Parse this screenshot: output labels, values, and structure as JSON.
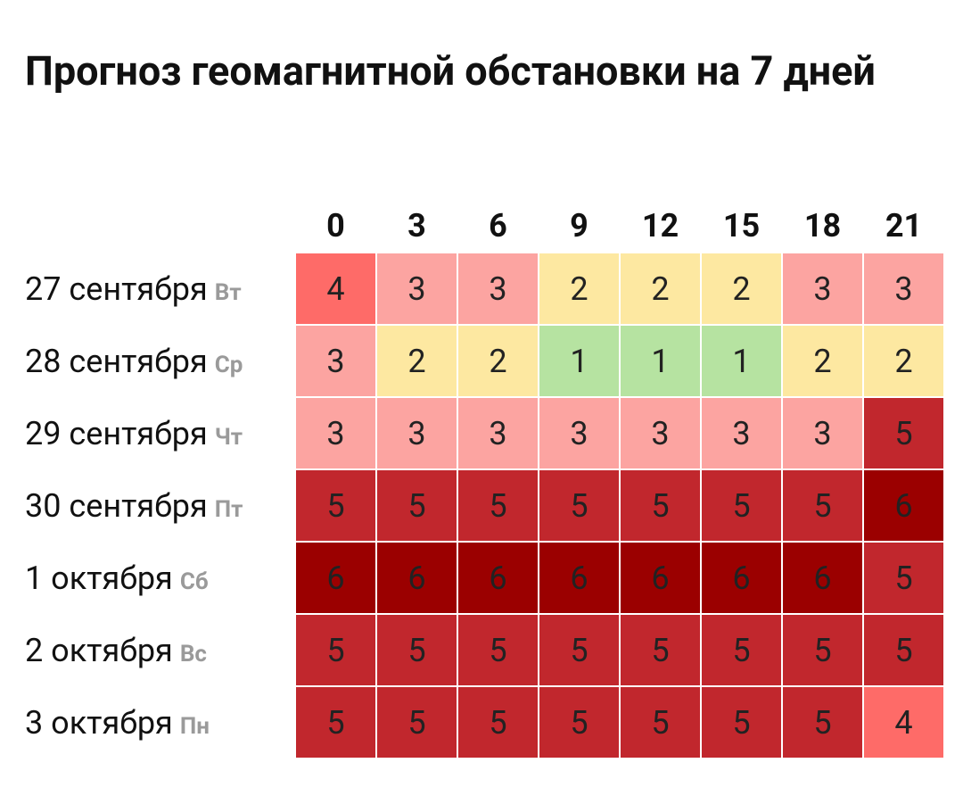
{
  "header": {
    "title": "Прогноз геомагнитной обстановки на 7 дней"
  },
  "table": {
    "columns": [
      0,
      3,
      6,
      9,
      12,
      15,
      18,
      21
    ],
    "level_colors": {
      "1": "#b6e3a1",
      "2": "#fde8a1",
      "3": "#fca4a1",
      "4": "#fe6b68",
      "5": "#c1272d",
      "6": "#9b0000"
    },
    "rows": [
      {
        "date": "27 сентября",
        "weekday": "Вт",
        "cells": [
          4,
          3,
          3,
          2,
          2,
          2,
          3,
          3
        ]
      },
      {
        "date": "28 сентября",
        "weekday": "Ср",
        "cells": [
          3,
          2,
          2,
          1,
          1,
          1,
          2,
          2
        ]
      },
      {
        "date": "29 сентября",
        "weekday": "Чт",
        "cells": [
          3,
          3,
          3,
          3,
          3,
          3,
          3,
          5
        ]
      },
      {
        "date": "30 сентября",
        "weekday": "Пт",
        "cells": [
          5,
          5,
          5,
          5,
          5,
          5,
          5,
          6
        ]
      },
      {
        "date": "1 октября",
        "weekday": "Сб",
        "cells": [
          6,
          6,
          6,
          6,
          6,
          6,
          6,
          5
        ]
      },
      {
        "date": "2 октября",
        "weekday": "Вс",
        "cells": [
          5,
          5,
          5,
          5,
          5,
          5,
          5,
          5
        ]
      },
      {
        "date": "3 октября",
        "weekday": "Пн",
        "cells": [
          5,
          5,
          5,
          5,
          5,
          5,
          5,
          4
        ]
      }
    ]
  }
}
